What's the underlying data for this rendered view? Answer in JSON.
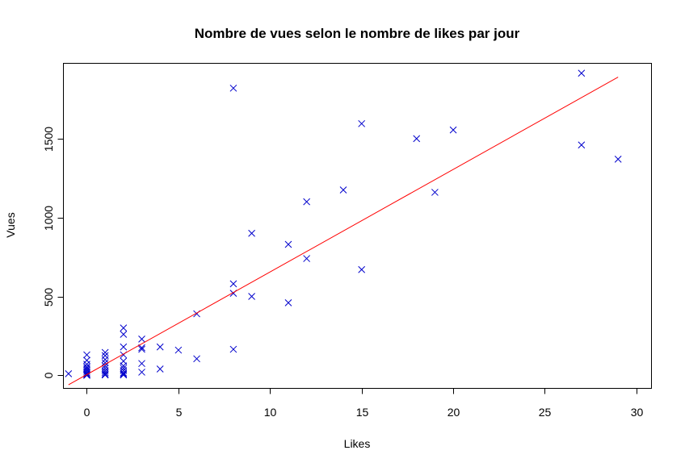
{
  "chart_data": {
    "type": "scatter",
    "title": "Nombre de vues selon le nombre de likes par jour",
    "xlabel": "Likes",
    "ylabel": "Vues",
    "xlim": [
      -1.3,
      30.8
    ],
    "ylim": [
      -80,
      1980
    ],
    "x_ticks": [
      0,
      5,
      10,
      15,
      20,
      25,
      30
    ],
    "y_ticks": [
      0,
      500,
      1000,
      1500
    ],
    "grid": false,
    "legend": "none",
    "marker": "x",
    "colors": {
      "points": "#0000cc",
      "regression_line": "#ff0000",
      "axes": "#000000",
      "background": "#ffffff"
    },
    "series": [
      {
        "type": "scatter",
        "x": [
          -1,
          0,
          0,
          0,
          0,
          0,
          0,
          0,
          0,
          0,
          0,
          0,
          1,
          1,
          1,
          1,
          1,
          1,
          1,
          1,
          1,
          1,
          2,
          2,
          2,
          2,
          2,
          2,
          2,
          2,
          2,
          2,
          2,
          3,
          3,
          3,
          3,
          3,
          4,
          4,
          5,
          6,
          6,
          8,
          8,
          8,
          8,
          9,
          9,
          11,
          11,
          12,
          12,
          14,
          15,
          15,
          18,
          19,
          20,
          27,
          27,
          29
        ],
        "y": [
          10,
          130,
          95,
          70,
          55,
          45,
          35,
          25,
          15,
          8,
          3,
          0,
          145,
          125,
          100,
          80,
          60,
          45,
          30,
          18,
          8,
          2,
          300,
          260,
          180,
          130,
          90,
          60,
          45,
          30,
          15,
          8,
          2,
          230,
          175,
          165,
          75,
          20,
          180,
          40,
          160,
          105,
          390,
          1820,
          580,
          520,
          165,
          900,
          500,
          830,
          460,
          1100,
          740,
          1175,
          1595,
          670,
          1500,
          1160,
          1555,
          1915,
          1460,
          1370
        ]
      },
      {
        "type": "line",
        "x": [
          -1,
          29
        ],
        "y": [
          -60,
          1890
        ]
      }
    ]
  }
}
